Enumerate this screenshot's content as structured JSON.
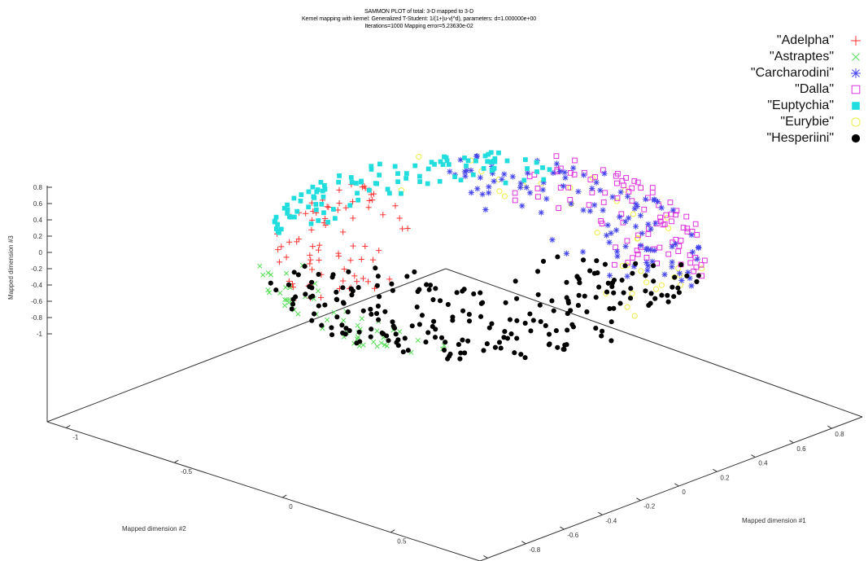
{
  "chart_data": {
    "type": "scatter",
    "title": "SAMMON PLOT of total: 3-D mapped to 3-D",
    "subtitle": "Kernel mapping with kernel: Generalized T-Student: 1/(1+|u-v|^d), parameters: d=1.000000e+00",
    "subtitle2": "Iterations=1000 Mapping error=5.23630e-02",
    "xlabel": "Mapped dimension #1",
    "ylabel": "Mapped dimension #2",
    "zlabel": "Mapped dimension #3",
    "xlim": [
      -1,
      1
    ],
    "ylim": [
      -1,
      1
    ],
    "zlim": [
      -1,
      1
    ],
    "x_ticks": [
      "-1",
      "-0.8",
      "-0.6",
      "-0.4",
      "-0.2",
      "0",
      "0.2",
      "0.4",
      "0.6",
      "0.8"
    ],
    "y_ticks": [
      "-1",
      "-0.5",
      "0",
      "0.5"
    ],
    "z_ticks": [
      "0.8",
      "0.6",
      "0.4",
      "0.2",
      "0",
      "-0.2",
      "-0.4",
      "-0.6",
      "-0.8",
      "-1"
    ],
    "grid": false,
    "legend_position": "top-right",
    "series": [
      {
        "name": "\"Adelpha\"",
        "marker": "plus",
        "color": "#ff3333"
      },
      {
        "name": "\"Astraptes\"",
        "marker": "cross",
        "color": "#55dd55"
      },
      {
        "name": "\"Carcharodini\"",
        "marker": "asterisk",
        "color": "#4444ee"
      },
      {
        "name": "\"Dalla\"",
        "marker": "square-open",
        "color": "#dd33dd"
      },
      {
        "name": "\"Euptychia\"",
        "marker": "square-filled",
        "color": "#22dddd"
      },
      {
        "name": "\"Eurybie\"",
        "marker": "circle-open",
        "color": "#eeee44"
      },
      {
        "name": "\"Hesperiini\"",
        "marker": "circle-filled",
        "color": "#000000"
      }
    ]
  }
}
